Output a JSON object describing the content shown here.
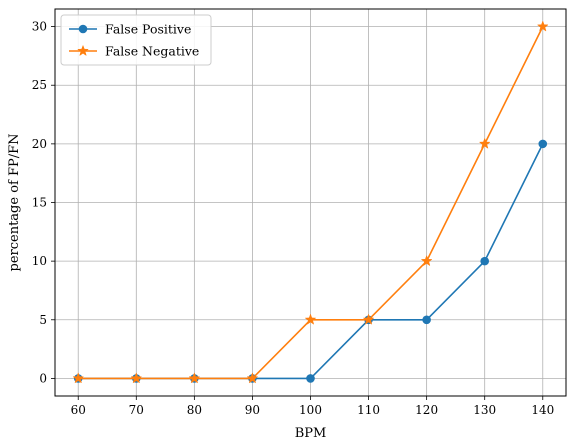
{
  "chart_data": {
    "type": "line",
    "x": [
      60,
      70,
      80,
      90,
      100,
      110,
      120,
      130,
      140
    ],
    "xticks": [
      60,
      70,
      80,
      90,
      100,
      110,
      120,
      130,
      140
    ],
    "yticks": [
      0,
      5,
      10,
      15,
      20,
      25,
      30
    ],
    "xlim": [
      56.0,
      144.0
    ],
    "ylim": [
      -1.5,
      31.5
    ],
    "xlabel": "BPM",
    "ylabel": "percentage of FP/FN",
    "grid": true,
    "legend_position": "top-left",
    "series": [
      {
        "name": "False Positive",
        "color": "#1f77b4",
        "marker": "circle",
        "values": [
          0,
          0,
          0,
          0,
          0,
          5,
          5,
          10,
          20
        ]
      },
      {
        "name": "False Negative",
        "color": "#ff7f0e",
        "marker": "star",
        "values": [
          0,
          0,
          0,
          0,
          5,
          5,
          10,
          20,
          30
        ]
      }
    ]
  }
}
